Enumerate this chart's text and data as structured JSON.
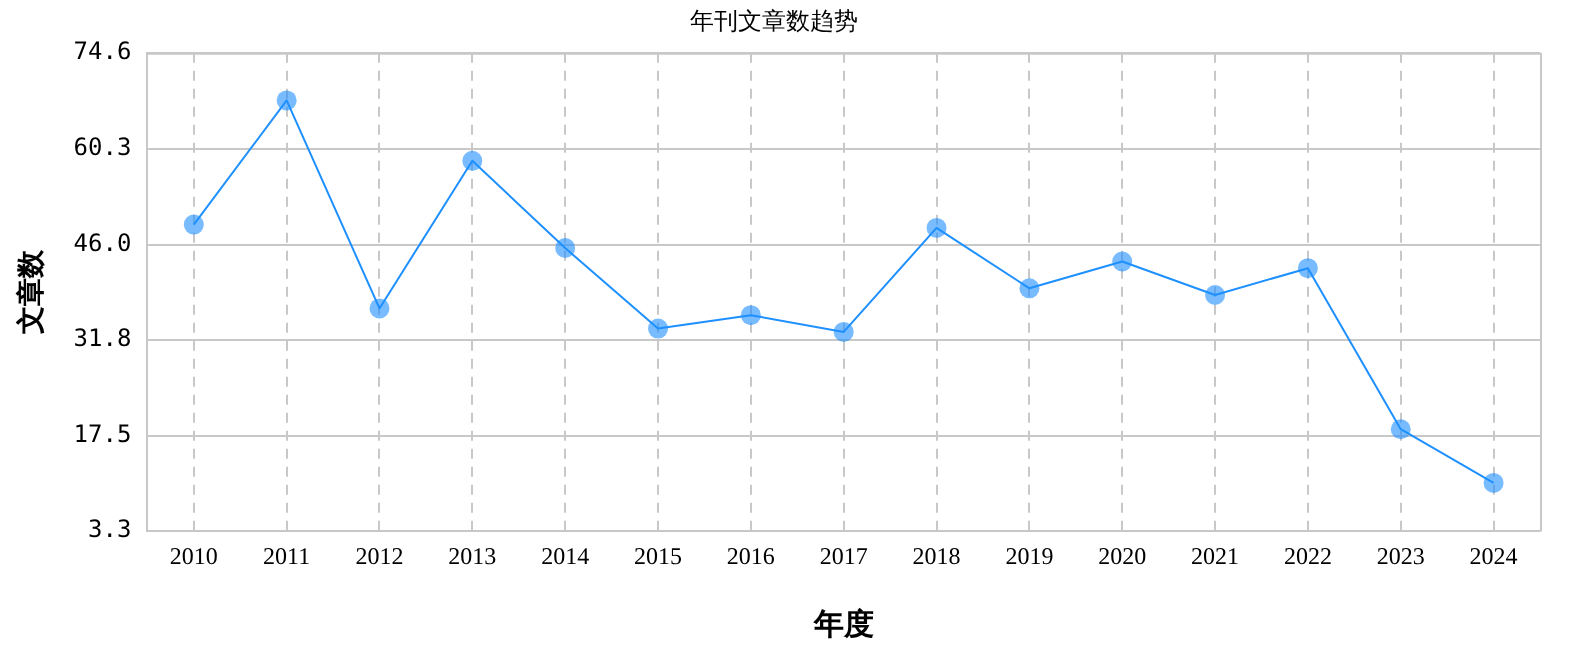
{
  "chart_data": {
    "type": "line",
    "title": "年刊文章数趋势",
    "xlabel": "年度",
    "ylabel": "文章数",
    "categories": [
      "2010",
      "2011",
      "2012",
      "2013",
      "2014",
      "2015",
      "2016",
      "2017",
      "2018",
      "2019",
      "2020",
      "2021",
      "2022",
      "2023",
      "2024"
    ],
    "series": [
      {
        "color": "#1e90ff",
        "values": [
          49,
          67.5,
          36.5,
          58.5,
          45.5,
          33.5,
          35.5,
          33,
          48.5,
          39.5,
          43.5,
          38.5,
          42.5,
          18.5,
          10.5
        ]
      }
    ],
    "ylim": [
      3.3,
      74.6
    ],
    "yticks": [
      3.3,
      17.5,
      31.8,
      {
        "value": 46,
        "label": "46.0"
      },
      60.3,
      74.6
    ],
    "grid": true,
    "legend": false,
    "marker": "circle",
    "line_style": "solid"
  }
}
